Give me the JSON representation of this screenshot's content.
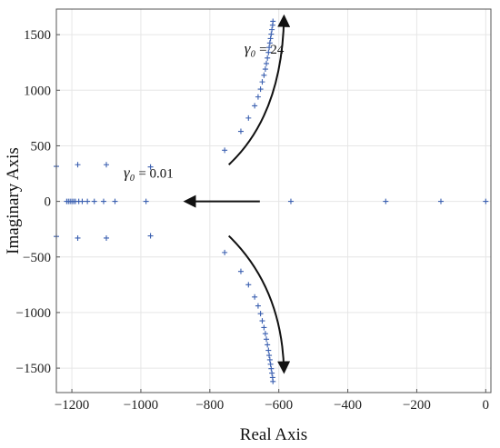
{
  "chart_data": {
    "type": "scatter",
    "xlabel": "Real Axis",
    "ylabel": "Imaginary Axis",
    "xlim": [
      -1245,
      15
    ],
    "ylim": [
      -1720,
      1730
    ],
    "grid": true,
    "x_ticks": [
      -1200,
      -1000,
      -800,
      -600,
      -400,
      -200,
      0
    ],
    "y_ticks": [
      -1500,
      -1000,
      -500,
      0,
      500,
      1000,
      1500
    ],
    "marker": "plus",
    "marker_color": "#3a5fb0",
    "series": [
      {
        "points": [
          [
            -1245,
            315
          ],
          [
            -1245,
            -315
          ],
          [
            -1183,
            330
          ],
          [
            -1183,
            -330
          ],
          [
            -1100,
            330
          ],
          [
            -1100,
            -330
          ],
          [
            -972,
            310
          ],
          [
            -972,
            -310
          ],
          [
            -1215,
            0
          ],
          [
            -1210,
            0
          ],
          [
            -1205,
            0
          ],
          [
            -1200,
            0
          ],
          [
            -1195,
            0
          ],
          [
            -1190,
            0
          ],
          [
            -1180,
            0
          ],
          [
            -1170,
            0
          ],
          [
            -1155,
            0
          ],
          [
            -1135,
            0
          ],
          [
            -1108,
            0
          ],
          [
            -1075,
            0
          ],
          [
            -985,
            0
          ],
          [
            -565,
            0
          ],
          [
            -290,
            0
          ],
          [
            -130,
            0
          ],
          [
            0,
            0
          ],
          [
            -757,
            460
          ],
          [
            -710,
            630
          ],
          [
            -688,
            750
          ],
          [
            -670,
            860
          ],
          [
            -660,
            940
          ],
          [
            -653,
            1010
          ],
          [
            -648,
            1075
          ],
          [
            -643,
            1135
          ],
          [
            -639,
            1190
          ],
          [
            -636,
            1240
          ],
          [
            -633,
            1290
          ],
          [
            -630,
            1340
          ],
          [
            -628,
            1385
          ],
          [
            -626,
            1425
          ],
          [
            -624,
            1465
          ],
          [
            -622,
            1505
          ],
          [
            -620,
            1545
          ],
          [
            -618,
            1585
          ],
          [
            -617,
            1620
          ],
          [
            -757,
            -460
          ],
          [
            -710,
            -630
          ],
          [
            -688,
            -750
          ],
          [
            -670,
            -860
          ],
          [
            -660,
            -940
          ],
          [
            -653,
            -1010
          ],
          [
            -648,
            -1075
          ],
          [
            -643,
            -1135
          ],
          [
            -639,
            -1190
          ],
          [
            -636,
            -1240
          ],
          [
            -633,
            -1290
          ],
          [
            -630,
            -1340
          ],
          [
            -628,
            -1385
          ],
          [
            -626,
            -1425
          ],
          [
            -624,
            -1465
          ],
          [
            -622,
            -1505
          ],
          [
            -620,
            -1545
          ],
          [
            -618,
            -1585
          ],
          [
            -617,
            -1620
          ]
        ]
      }
    ],
    "annotations": [
      {
        "symbol": "γ₀",
        "text": " = 24",
        "x": -700,
        "y": 1330
      },
      {
        "symbol": "γ₀",
        "text": " = 0.01",
        "x": -1050,
        "y": 215
      }
    ],
    "arrows": [
      {
        "kind": "curve",
        "from": [
          -745,
          330
        ],
        "ctrl": [
          -590,
          780
        ],
        "to": [
          -585,
          1660
        ]
      },
      {
        "kind": "straight",
        "from": [
          -655,
          0
        ],
        "to": [
          -870,
          0
        ]
      },
      {
        "kind": "curve",
        "from": [
          -745,
          -310
        ],
        "ctrl": [
          -590,
          -780
        ],
        "to": [
          -585,
          -1530
        ]
      }
    ]
  }
}
